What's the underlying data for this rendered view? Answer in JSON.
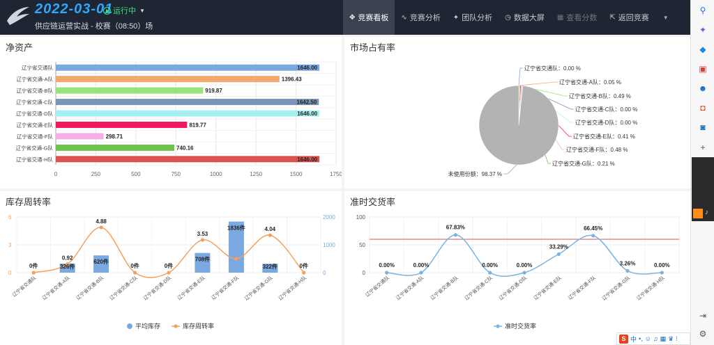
{
  "header": {
    "date": "2022-03-01",
    "status": "运行中",
    "subtitle": "供应链运营实战 - 校赛（08:50）场"
  },
  "nav": [
    {
      "label": "竞赛看板",
      "icon": "✥",
      "active": true,
      "disabled": false
    },
    {
      "label": "竞赛分析",
      "icon": "∿",
      "active": false,
      "disabled": false
    },
    {
      "label": "团队分析",
      "icon": "✦",
      "active": false,
      "disabled": false
    },
    {
      "label": "数据大屏",
      "icon": "◷",
      "active": false,
      "disabled": false
    },
    {
      "label": "查看分数",
      "icon": "▦",
      "active": false,
      "disabled": true
    },
    {
      "label": "返回竞赛",
      "icon": "⇱",
      "active": false,
      "disabled": false
    }
  ],
  "panels": {
    "net_assets": "净资产",
    "market_share": "市场占有率",
    "inventory_turnover": "库存周转率",
    "on_time": "准时交货率"
  },
  "chart_data": [
    {
      "type": "bar",
      "orientation": "horizontal",
      "title": "净资产",
      "categories": [
        "辽宁省交通队",
        "辽宁省交通-A队",
        "辽宁省交通-B队",
        "辽宁省交通-C队",
        "辽宁省交通-D队",
        "辽宁省交通-E队",
        "辽宁省交通-F队",
        "辽宁省交通-G队",
        "辽宁省交通-H队"
      ],
      "values": [
        1646.0,
        1396.43,
        919.87,
        1642.5,
        1646.0,
        819.77,
        298.71,
        740.16,
        1646.0
      ],
      "labels": [
        "1646.00",
        "1396.43",
        "919.87",
        "1642.50",
        "1646.00",
        "819.77",
        "298.71",
        "740.16",
        "1646.00"
      ],
      "colors": [
        "#7aa9e0",
        "#f5a86e",
        "#96e47a",
        "#7a95b8",
        "#a6eff0",
        "#f0195e",
        "#f3b0e6",
        "#6cc24a",
        "#d9534f"
      ],
      "xlim": [
        0,
        1750
      ],
      "xticks": [
        "0",
        "250",
        "500",
        "750",
        "1000",
        "1250",
        "1500",
        "1750"
      ],
      "grid": true
    },
    {
      "type": "pie",
      "title": "市场占有率",
      "slices": [
        {
          "name": "辽宁省交通队",
          "value": 0.0,
          "label": "0.00 %",
          "color": "#7aa9e0"
        },
        {
          "name": "辽宁省交通-A队",
          "value": 0.05,
          "label": "0.05 %",
          "color": "#f5a86e"
        },
        {
          "name": "辽宁省交通-B队",
          "value": 0.49,
          "label": "0.49 %",
          "color": "#96e47a"
        },
        {
          "name": "辽宁省交通-C队",
          "value": 0.0,
          "label": "0.00 %",
          "color": "#7a95b8"
        },
        {
          "name": "辽宁省交通-D队",
          "value": 0.0,
          "label": "0.00 %",
          "color": "#a6eff0"
        },
        {
          "name": "辽宁省交通-E队",
          "value": 0.41,
          "label": "0.41 %",
          "color": "#f0195e"
        },
        {
          "name": "辽宁省交通-F队",
          "value": 0.48,
          "label": "0.48 %",
          "color": "#f3b0e6"
        },
        {
          "name": "辽宁省交通-G队",
          "value": 0.21,
          "label": "0.21 %",
          "color": "#6cc24a"
        },
        {
          "name": "未使用份额",
          "value": 98.37,
          "label": "98.37 %",
          "color": "#b3b3b3"
        }
      ]
    },
    {
      "type": "bar+line",
      "title": "库存周转率",
      "categories": [
        "辽宁省交通队",
        "辽宁省交通-A队",
        "辽宁省交通-B队",
        "辽宁省交通-C队",
        "辽宁省交通-D队",
        "辽宁省交通-E队",
        "辽宁省交通-F队",
        "辽宁省交通-G队",
        "辽宁省交通-H队"
      ],
      "series": [
        {
          "name": "平均库存",
          "type": "bar",
          "axis": "right",
          "color": "#7aa9e0",
          "values": [
            0,
            326,
            620,
            0,
            0,
            708,
            1836,
            322,
            0
          ],
          "labels": [
            "0件",
            "326件",
            "620件",
            "0件",
            "0件",
            "708件",
            "1836件",
            "322件",
            "0件"
          ]
        },
        {
          "name": "库存周转率",
          "type": "line",
          "axis": "left",
          "color": "#f5a05a",
          "values": [
            0,
            0.92,
            4.88,
            0,
            0,
            3.53,
            1.5,
            4.04,
            0
          ],
          "labels": [
            "",
            "0.92",
            "4.88",
            "",
            "",
            "3.53",
            "",
            "4.04",
            ""
          ]
        }
      ],
      "ylim_left": [
        0,
        6
      ],
      "yticks_left": [
        "0",
        "3",
        "6"
      ],
      "ylim_right": [
        0,
        2000
      ],
      "yticks_right": [
        "0",
        "1000",
        "2000"
      ]
    },
    {
      "type": "line",
      "title": "准时交货率",
      "categories": [
        "辽宁省交通队",
        "辽宁省交通-A队",
        "辽宁省交通-B队",
        "辽宁省交通-C队",
        "辽宁省交通-D队",
        "辽宁省交通-E队",
        "辽宁省交通-F队",
        "辽宁省交通-G队",
        "辽宁省交通-H队"
      ],
      "series": [
        {
          "name": "准时交货率",
          "color": "#7ab3e0",
          "values": [
            0,
            0,
            67.83,
            0,
            0,
            33.29,
            66.45,
            3.26,
            0
          ],
          "labels": [
            "0.00%",
            "0.00%",
            "67.83%",
            "0.00%",
            "0.00%",
            "33.29%",
            "66.45%",
            "3.26%",
            "0.00%"
          ]
        }
      ],
      "ylim": [
        0,
        100
      ],
      "yticks": [
        "0",
        "50",
        "100"
      ],
      "reference_line": {
        "value": 60,
        "color": "#d9534f"
      }
    }
  ],
  "sidebar": {
    "icons": [
      "search-icon",
      "sparkle-icon",
      "tag-icon",
      "toolbox-icon",
      "people-icon",
      "office-icon",
      "outlook-icon",
      "plus-icon",
      "exit-icon",
      "settings-icon"
    ]
  },
  "tray": {
    "ime": "中"
  }
}
